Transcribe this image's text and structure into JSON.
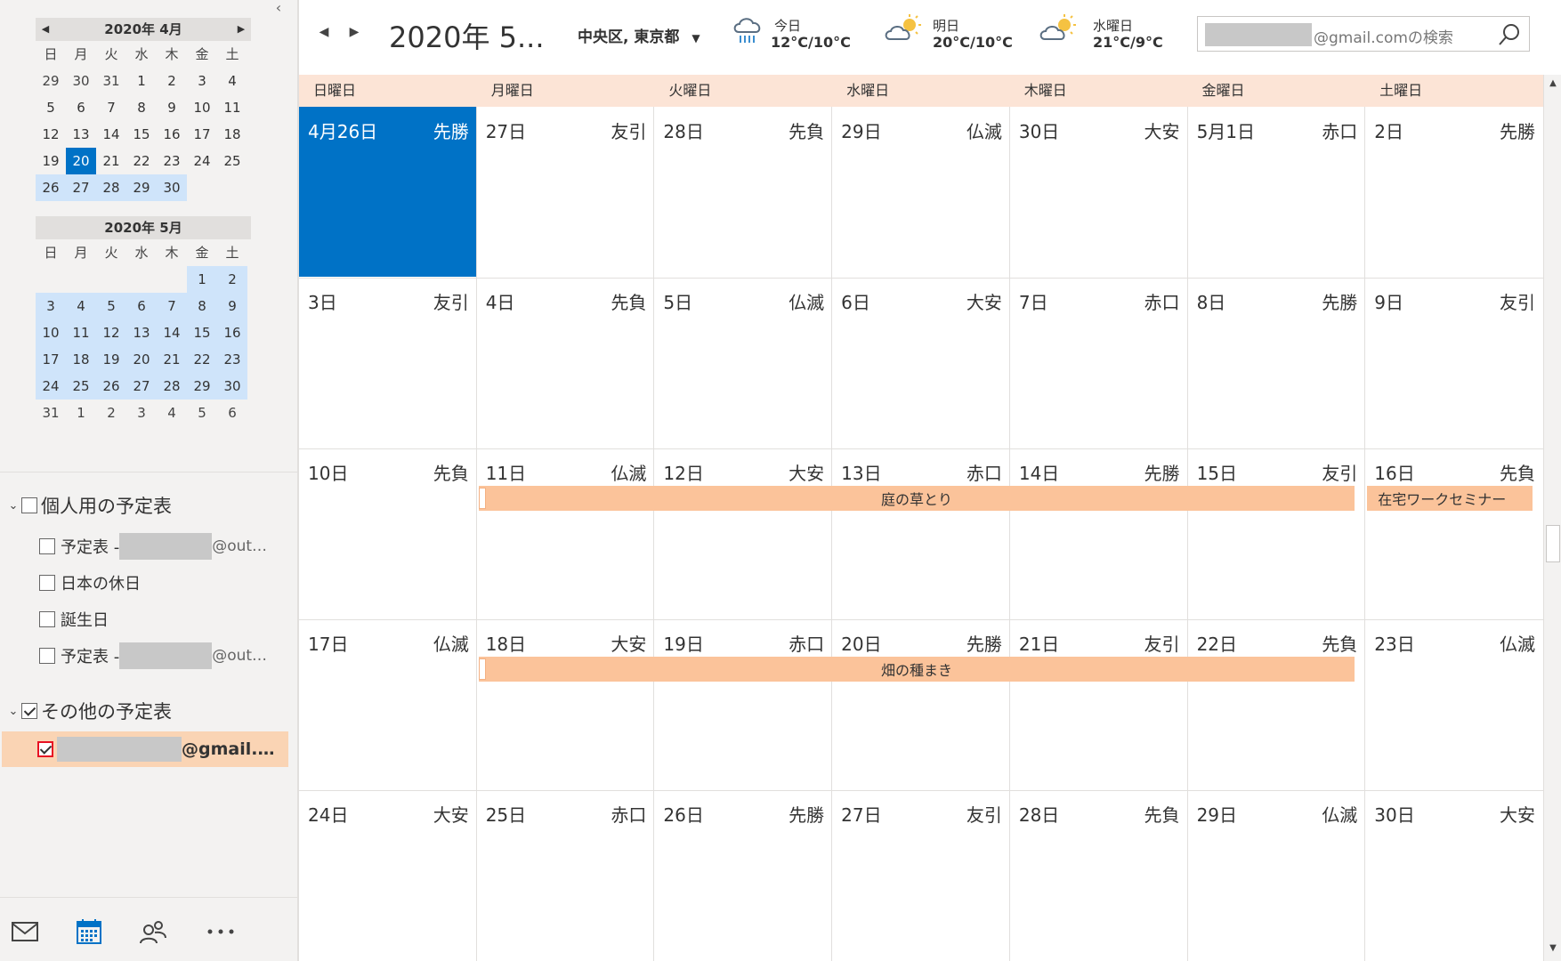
{
  "mini_calendars": [
    {
      "title": "2020年 4月",
      "dow": [
        "日",
        "月",
        "火",
        "水",
        "木",
        "金",
        "土"
      ],
      "days": [
        {
          "d": "29",
          "cls": "other"
        },
        {
          "d": "30",
          "cls": "other"
        },
        {
          "d": "31",
          "cls": "other"
        },
        {
          "d": "1",
          "cls": ""
        },
        {
          "d": "2",
          "cls": ""
        },
        {
          "d": "3",
          "cls": ""
        },
        {
          "d": "4",
          "cls": ""
        },
        {
          "d": "5",
          "cls": ""
        },
        {
          "d": "6",
          "cls": ""
        },
        {
          "d": "7",
          "cls": ""
        },
        {
          "d": "8",
          "cls": ""
        },
        {
          "d": "9",
          "cls": ""
        },
        {
          "d": "10",
          "cls": ""
        },
        {
          "d": "11",
          "cls": ""
        },
        {
          "d": "12",
          "cls": ""
        },
        {
          "d": "13",
          "cls": ""
        },
        {
          "d": "14",
          "cls": ""
        },
        {
          "d": "15",
          "cls": ""
        },
        {
          "d": "16",
          "cls": ""
        },
        {
          "d": "17",
          "cls": ""
        },
        {
          "d": "18",
          "cls": ""
        },
        {
          "d": "19",
          "cls": ""
        },
        {
          "d": "20",
          "cls": "today"
        },
        {
          "d": "21",
          "cls": ""
        },
        {
          "d": "22",
          "cls": ""
        },
        {
          "d": "23",
          "cls": ""
        },
        {
          "d": "24",
          "cls": ""
        },
        {
          "d": "25",
          "cls": ""
        },
        {
          "d": "26",
          "cls": "hl"
        },
        {
          "d": "27",
          "cls": "hl"
        },
        {
          "d": "28",
          "cls": "hl"
        },
        {
          "d": "29",
          "cls": "hl"
        },
        {
          "d": "30",
          "cls": "hl"
        },
        {
          "d": "",
          "cls": "blank"
        },
        {
          "d": "",
          "cls": "blank"
        }
      ]
    },
    {
      "title": "2020年 5月",
      "dow": [
        "日",
        "月",
        "火",
        "水",
        "木",
        "金",
        "土"
      ],
      "days": [
        {
          "d": "",
          "cls": "blank"
        },
        {
          "d": "",
          "cls": "blank"
        },
        {
          "d": "",
          "cls": "blank"
        },
        {
          "d": "",
          "cls": "blank"
        },
        {
          "d": "",
          "cls": "blank"
        },
        {
          "d": "1",
          "cls": "hl"
        },
        {
          "d": "2",
          "cls": "hl"
        },
        {
          "d": "3",
          "cls": "hl"
        },
        {
          "d": "4",
          "cls": "hl"
        },
        {
          "d": "5",
          "cls": "hl"
        },
        {
          "d": "6",
          "cls": "hl"
        },
        {
          "d": "7",
          "cls": "hl"
        },
        {
          "d": "8",
          "cls": "hl"
        },
        {
          "d": "9",
          "cls": "hl"
        },
        {
          "d": "10",
          "cls": "hl"
        },
        {
          "d": "11",
          "cls": "hl"
        },
        {
          "d": "12",
          "cls": "hl"
        },
        {
          "d": "13",
          "cls": "hl"
        },
        {
          "d": "14",
          "cls": "hl"
        },
        {
          "d": "15",
          "cls": "hl"
        },
        {
          "d": "16",
          "cls": "hl"
        },
        {
          "d": "17",
          "cls": "hl"
        },
        {
          "d": "18",
          "cls": "hl"
        },
        {
          "d": "19",
          "cls": "hl"
        },
        {
          "d": "20",
          "cls": "hl"
        },
        {
          "d": "21",
          "cls": "hl"
        },
        {
          "d": "22",
          "cls": "hl"
        },
        {
          "d": "23",
          "cls": "hl"
        },
        {
          "d": "24",
          "cls": "hl"
        },
        {
          "d": "25",
          "cls": "hl"
        },
        {
          "d": "26",
          "cls": "hl"
        },
        {
          "d": "27",
          "cls": "hl"
        },
        {
          "d": "28",
          "cls": "hl"
        },
        {
          "d": "29",
          "cls": "hl"
        },
        {
          "d": "30",
          "cls": "hl"
        },
        {
          "d": "31",
          "cls": "other"
        },
        {
          "d": "1",
          "cls": "other"
        },
        {
          "d": "2",
          "cls": "other"
        },
        {
          "d": "3",
          "cls": "other"
        },
        {
          "d": "4",
          "cls": "other"
        },
        {
          "d": "5",
          "cls": "other"
        },
        {
          "d": "6",
          "cls": "other"
        }
      ]
    }
  ],
  "calendar_groups": {
    "personal": {
      "label": "個人用の予定表",
      "items": [
        {
          "label": "予定表 - ",
          "suffix": "@out…",
          "redacted": true
        },
        {
          "label": "日本の休日",
          "suffix": "",
          "redacted": false
        },
        {
          "label": "誕生日",
          "suffix": "",
          "redacted": false
        },
        {
          "label": "予定表 - ",
          "suffix": "@out…",
          "redacted": true
        }
      ]
    },
    "other": {
      "label": "その他の予定表",
      "gmail_suffix": "@gmail.…"
    }
  },
  "bottom_nav": [
    "mail-icon",
    "calendar-icon",
    "people-icon",
    "more-icon"
  ],
  "topbar": {
    "title": "2020年 5...",
    "location": "中央区, 東京都",
    "weather": [
      {
        "label": "今日",
        "temp": "12°C/10°C",
        "icon": "rain-icon"
      },
      {
        "label": "明日",
        "temp": "20°C/10°C",
        "icon": "partly-sunny-icon"
      },
      {
        "label": "水曜日",
        "temp": "21°C/9°C",
        "icon": "partly-sunny-icon"
      }
    ],
    "search_suffix": "@gmail.comの検索"
  },
  "month_view": {
    "dow": [
      "日曜日",
      "月曜日",
      "火曜日",
      "水曜日",
      "木曜日",
      "金曜日",
      "土曜日"
    ],
    "weeks": [
      [
        [
          "4月26日",
          "先勝"
        ],
        [
          "27日",
          "友引"
        ],
        [
          "28日",
          "先負"
        ],
        [
          "29日",
          "仏滅"
        ],
        [
          "30日",
          "大安"
        ],
        [
          "5月1日",
          "赤口"
        ],
        [
          "2日",
          "先勝"
        ]
      ],
      [
        [
          "3日",
          "友引"
        ],
        [
          "4日",
          "先負"
        ],
        [
          "5日",
          "仏滅"
        ],
        [
          "6日",
          "大安"
        ],
        [
          "7日",
          "赤口"
        ],
        [
          "8日",
          "先勝"
        ],
        [
          "9日",
          "友引"
        ]
      ],
      [
        [
          "10日",
          "先負"
        ],
        [
          "11日",
          "仏滅"
        ],
        [
          "12日",
          "大安"
        ],
        [
          "13日",
          "赤口"
        ],
        [
          "14日",
          "先勝"
        ],
        [
          "15日",
          "友引"
        ],
        [
          "16日",
          "先負"
        ]
      ],
      [
        [
          "17日",
          "仏滅"
        ],
        [
          "18日",
          "大安"
        ],
        [
          "19日",
          "赤口"
        ],
        [
          "20日",
          "先勝"
        ],
        [
          "21日",
          "友引"
        ],
        [
          "22日",
          "先負"
        ],
        [
          "23日",
          "仏滅"
        ]
      ],
      [
        [
          "24日",
          "大安"
        ],
        [
          "25日",
          "赤口"
        ],
        [
          "26日",
          "先勝"
        ],
        [
          "27日",
          "友引"
        ],
        [
          "28日",
          "先負"
        ],
        [
          "29日",
          "仏滅"
        ],
        [
          "30日",
          "大安"
        ]
      ]
    ],
    "selected": {
      "week": 0,
      "day": 0
    },
    "events": [
      {
        "title": "庭の草とり",
        "week": 2,
        "start": 1,
        "end": 5,
        "align": "center"
      },
      {
        "title": "在宅ワークセミナー",
        "week": 2,
        "start": 6,
        "end": 6,
        "align": "left"
      },
      {
        "title": "畑の種まき",
        "week": 3,
        "start": 1,
        "end": 5,
        "align": "center"
      }
    ]
  },
  "colors": {
    "accent": "#0072c6",
    "event": "#fbc39a",
    "header_band": "#fce4d6",
    "mini_highlight": "#cfe4fa"
  }
}
